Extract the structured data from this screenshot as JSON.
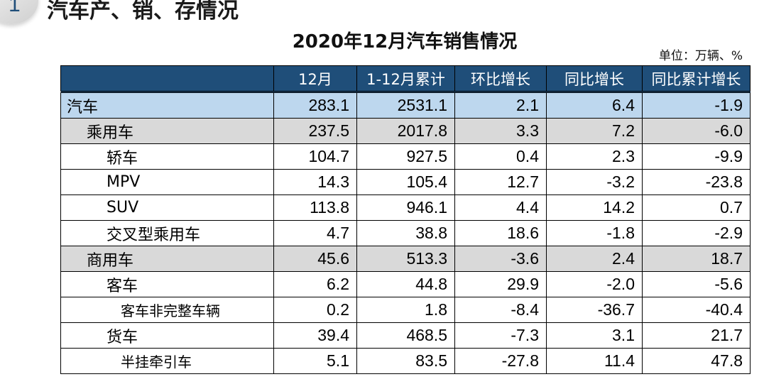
{
  "section": {
    "number": "1",
    "title": "汽车产、销、存情况"
  },
  "table_title": "2020年12月汽车销售情况",
  "unit": "单位：万辆、%",
  "table": {
    "headers": [
      "",
      "12月",
      "1-12月累计",
      "环比增长",
      "同比增长",
      "同比累计增长"
    ],
    "rows": [
      {
        "name": "汽车",
        "level": 0,
        "values": [
          "283.1",
          "2531.1",
          "2.1",
          "6.4",
          "-1.9"
        ]
      },
      {
        "name": "乘用车",
        "level": 1,
        "values": [
          "237.5",
          "2017.8",
          "3.3",
          "7.2",
          "-6.0"
        ]
      },
      {
        "name": "轿车",
        "level": 2,
        "values": [
          "104.7",
          "927.5",
          "0.4",
          "2.3",
          "-9.9"
        ]
      },
      {
        "name": "MPV",
        "level": 2,
        "values": [
          "14.3",
          "105.4",
          "12.7",
          "-3.2",
          "-23.8"
        ]
      },
      {
        "name": "SUV",
        "level": 2,
        "values": [
          "113.8",
          "946.1",
          "4.4",
          "14.2",
          "0.7"
        ]
      },
      {
        "name": "交叉型乘用车",
        "level": 2,
        "values": [
          "4.7",
          "38.8",
          "18.6",
          "-1.8",
          "-2.9"
        ]
      },
      {
        "name": "商用车",
        "level": 1,
        "values": [
          "45.6",
          "513.3",
          "-3.6",
          "2.4",
          "18.7"
        ]
      },
      {
        "name": "客车",
        "level": 2,
        "values": [
          "6.2",
          "44.8",
          "29.9",
          "-2.0",
          "-5.6"
        ]
      },
      {
        "name": "客车非完整车辆",
        "level": 3,
        "values": [
          "0.2",
          "1.8",
          "-8.4",
          "-36.7",
          "-40.4"
        ]
      },
      {
        "name": "货车",
        "level": 2,
        "values": [
          "39.4",
          "468.5",
          "-7.3",
          "3.1",
          "21.7"
        ]
      },
      {
        "name": "半挂牵引车",
        "level": 3,
        "values": [
          "5.1",
          "83.5",
          "-27.8",
          "11.4",
          "47.8"
        ]
      }
    ]
  }
}
